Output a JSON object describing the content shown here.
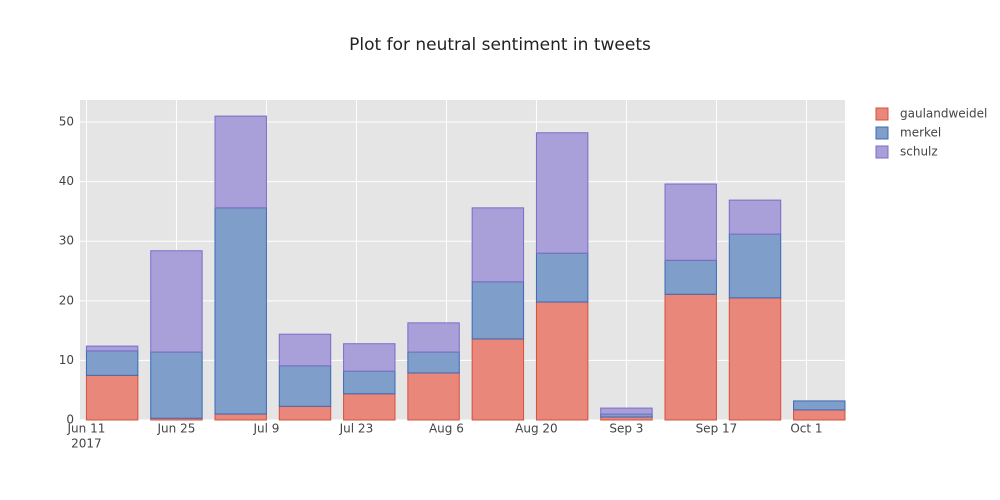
{
  "chart_data": {
    "type": "bar",
    "barmode": "stack",
    "title": "Plot for neutral sentiment in tweets",
    "x": [
      "2017-06-15",
      "2017-06-25",
      "2017-07-05",
      "2017-07-15",
      "2017-07-25",
      "2017-08-04",
      "2017-08-14",
      "2017-08-24",
      "2017-09-03",
      "2017-09-13",
      "2017-09-23",
      "2017-10-03"
    ],
    "series": [
      {
        "name": "gaulandweidel",
        "color": "#e8877a",
        "line_color": "#d6503c",
        "values": [
          7.5,
          0.3,
          1.0,
          2.3,
          4.4,
          7.9,
          13.6,
          19.8,
          0.5,
          21.1,
          20.5,
          1.7
        ]
      },
      {
        "name": "merkel",
        "color": "#7f9fca",
        "line_color": "#3d68b4",
        "values": [
          4.1,
          11.1,
          34.6,
          6.8,
          3.8,
          3.5,
          9.6,
          8.2,
          0.5,
          5.7,
          10.7,
          1.5
        ]
      },
      {
        "name": "schulz",
        "color": "#a99fd9",
        "line_color": "#7a6cc6",
        "values": [
          0.8,
          17.0,
          15.4,
          5.3,
          4.6,
          4.9,
          12.4,
          20.2,
          1.0,
          12.8,
          5.7,
          0
        ]
      }
    ],
    "xlim": [
      "2017-06-10",
      "2017-10-07"
    ],
    "xticks": [
      {
        "value": "2017-06-11",
        "label": "Jun 11",
        "sublabel": "2017"
      },
      {
        "value": "2017-06-25",
        "label": "Jun 25"
      },
      {
        "value": "2017-07-09",
        "label": "Jul 9"
      },
      {
        "value": "2017-07-23",
        "label": "Jul 23"
      },
      {
        "value": "2017-08-06",
        "label": "Aug 6"
      },
      {
        "value": "2017-08-20",
        "label": "Aug 20"
      },
      {
        "value": "2017-09-03",
        "label": "Sep 3"
      },
      {
        "value": "2017-09-17",
        "label": "Sep 17"
      },
      {
        "value": "2017-10-01",
        "label": "Oct 1"
      }
    ],
    "ylim": [
      0,
      53.7
    ],
    "yticks": [
      0,
      10,
      20,
      30,
      40,
      50
    ],
    "grid": true,
    "legend": "outside-right"
  }
}
